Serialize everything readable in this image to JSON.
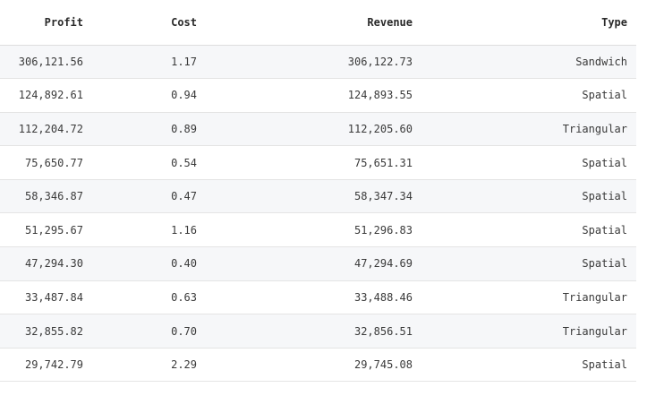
{
  "table": {
    "columns": [
      "Profit",
      "Cost",
      "Revenue",
      "Type"
    ],
    "rows": [
      {
        "profit": "306,121.56",
        "cost": "1.17",
        "revenue": "306,122.73",
        "type": "Sandwich"
      },
      {
        "profit": "124,892.61",
        "cost": "0.94",
        "revenue": "124,893.55",
        "type": "Spatial"
      },
      {
        "profit": "112,204.72",
        "cost": "0.89",
        "revenue": "112,205.60",
        "type": "Triangular"
      },
      {
        "profit": "75,650.77",
        "cost": "0.54",
        "revenue": "75,651.31",
        "type": "Spatial"
      },
      {
        "profit": "58,346.87",
        "cost": "0.47",
        "revenue": "58,347.34",
        "type": "Spatial"
      },
      {
        "profit": "51,295.67",
        "cost": "1.16",
        "revenue": "51,296.83",
        "type": "Spatial"
      },
      {
        "profit": "47,294.30",
        "cost": "0.40",
        "revenue": "47,294.69",
        "type": "Spatial"
      },
      {
        "profit": "33,487.84",
        "cost": "0.63",
        "revenue": "33,488.46",
        "type": "Triangular"
      },
      {
        "profit": "32,855.82",
        "cost": "0.70",
        "revenue": "32,856.51",
        "type": "Triangular"
      },
      {
        "profit": "29,742.79",
        "cost": "2.29",
        "revenue": "29,745.08",
        "type": "Spatial"
      }
    ]
  }
}
